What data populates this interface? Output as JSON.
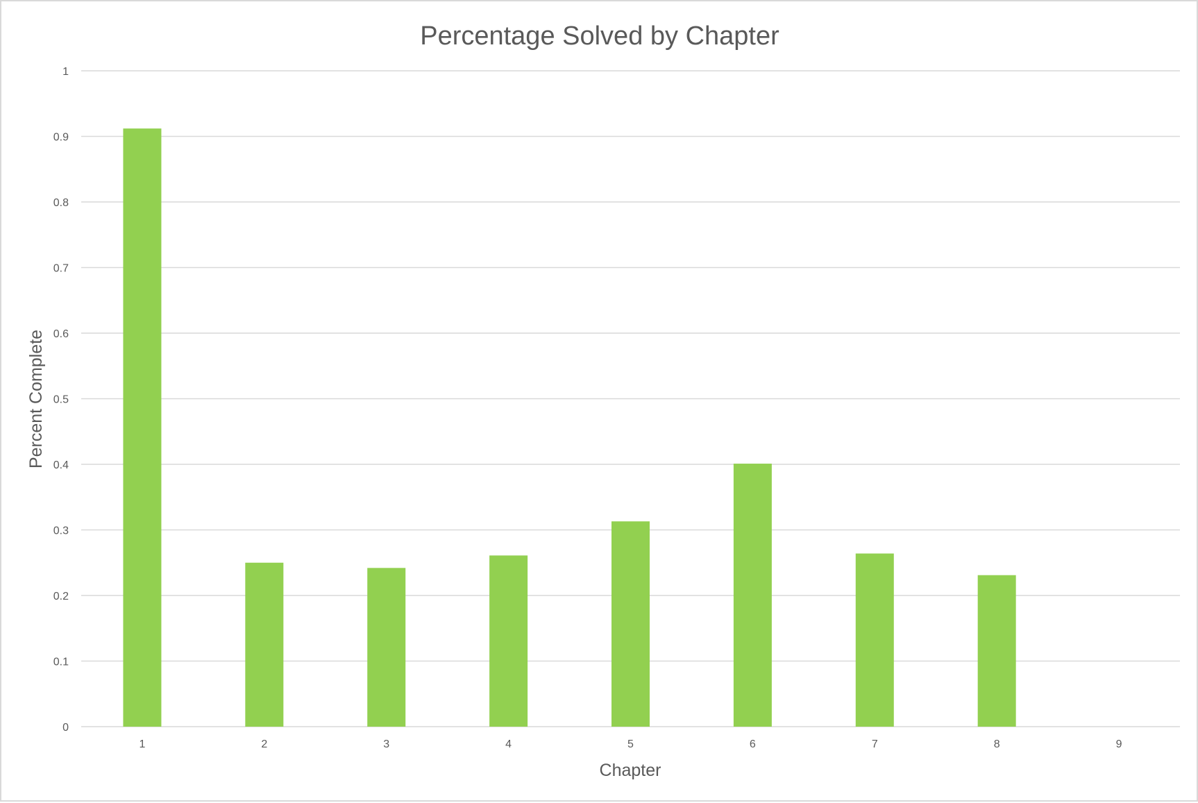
{
  "chart_data": {
    "type": "bar",
    "title": "Percentage Solved by Chapter",
    "xlabel": "Chapter",
    "ylabel": "Percent Complete",
    "categories": [
      "1",
      "2",
      "3",
      "4",
      "5",
      "6",
      "7",
      "8",
      "9"
    ],
    "values": [
      0.912,
      0.25,
      0.242,
      0.261,
      0.313,
      0.401,
      0.264,
      0.231,
      0
    ],
    "ylim": [
      0,
      1
    ],
    "yticks": [
      "0",
      "0.1",
      "0.2",
      "0.3",
      "0.4",
      "0.5",
      "0.6",
      "0.7",
      "0.8",
      "0.9",
      "1"
    ],
    "grid": true,
    "legend": "none",
    "colors": {
      "bar": "#92d050",
      "gridline": "#d9d9d9",
      "text": "#595959",
      "border": "#d9d9d9"
    }
  }
}
